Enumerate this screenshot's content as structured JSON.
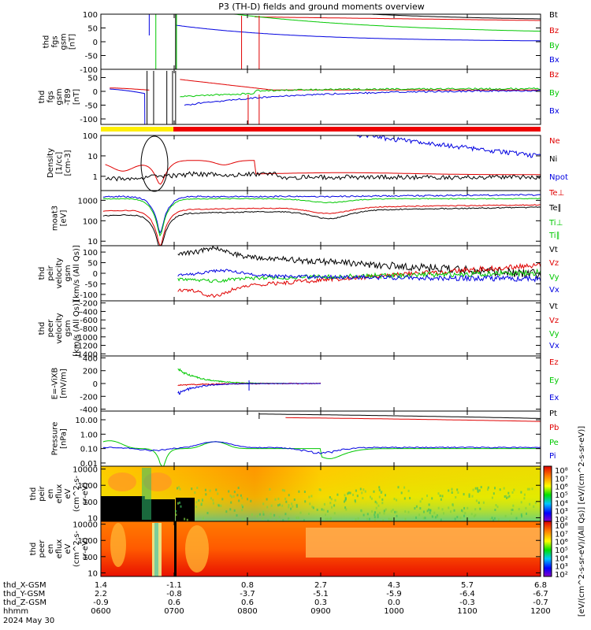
{
  "title": "P3 (TH-D) fields and ground moments overview",
  "date_label": "2024 May 30",
  "colors": {
    "black": "#000000",
    "red": "#e00000",
    "green": "#00c800",
    "blue": "#0000e0"
  },
  "chart_data": [
    {
      "type": "line",
      "ylabel": [
        "thd",
        "fgs",
        "gsm",
        "[nT]"
      ],
      "ylim": [
        -100,
        100
      ],
      "yticks": [
        "100",
        "50",
        "0",
        "-50",
        "-100"
      ],
      "series": [
        {
          "name": "Bt",
          "color": "black"
        },
        {
          "name": "Bz",
          "color": "red"
        },
        {
          "name": "By",
          "color": "green"
        },
        {
          "name": "Bx",
          "color": "blue"
        }
      ]
    },
    {
      "type": "line",
      "ylabel": [
        "thd",
        "fgs",
        "gsm",
        "-T89",
        "[nT]"
      ],
      "ylim": [
        -120,
        80
      ],
      "yticks": [
        "50",
        "0",
        "-50",
        "-100"
      ],
      "series": [
        {
          "name": "Bz",
          "color": "red"
        },
        {
          "name": "By",
          "color": "green"
        },
        {
          "name": "Bx",
          "color": "blue"
        }
      ]
    },
    {
      "type": "line",
      "ylabel": [
        "Density",
        "[1/cc]",
        "[cm-3]"
      ],
      "scale": "log",
      "ylim": [
        0.2,
        100
      ],
      "yticks": [
        "100",
        "10",
        "1"
      ],
      "series": [
        {
          "name": "Ne",
          "color": "red"
        },
        {
          "name": "Ni",
          "color": "black"
        },
        {
          "name": "Npot",
          "color": "blue"
        }
      ]
    },
    {
      "type": "line",
      "ylabel": [
        "moat3",
        "[eV]"
      ],
      "scale": "log",
      "ylim": [
        6,
        3000
      ],
      "yticks": [
        "1000",
        "100",
        "10"
      ],
      "series": [
        {
          "name": "Te⊥",
          "color": "red"
        },
        {
          "name": "Te∥",
          "color": "black"
        },
        {
          "name": "Ti⊥",
          "color": "green"
        },
        {
          "name": "Ti∥",
          "color": "green"
        }
      ]
    },
    {
      "type": "line",
      "ylabel": [
        "thd",
        "peir",
        "velocity",
        "gsm",
        "[km/s (All Qs)]"
      ],
      "ylim": [
        -130,
        130
      ],
      "yticks": [
        "100",
        "50",
        "0",
        "-50",
        "-100"
      ],
      "series": [
        {
          "name": "Vt",
          "color": "black"
        },
        {
          "name": "Vz",
          "color": "red"
        },
        {
          "name": "Vy",
          "color": "green"
        },
        {
          "name": "Vx",
          "color": "blue"
        }
      ]
    },
    {
      "type": "line",
      "ylabel": [
        "thd",
        "peer",
        "velocity",
        "gsm",
        "[km/s (All Qs)]"
      ],
      "ylim": [
        -1450,
        -150
      ],
      "yticks": [
        "-200",
        "-400",
        "-600",
        "-800",
        "-1000",
        "-1200",
        "-1400"
      ],
      "series": [
        {
          "name": "Vt",
          "color": "black"
        },
        {
          "name": "Vz",
          "color": "red"
        },
        {
          "name": "Vy",
          "color": "green"
        },
        {
          "name": "Vx",
          "color": "blue"
        }
      ]
    },
    {
      "type": "line",
      "ylabel": [
        "E=-ViXB",
        "[mV/m]"
      ],
      "ylim": [
        -430,
        430
      ],
      "yticks": [
        "400",
        "200",
        "0",
        "-200",
        "-400"
      ],
      "series": [
        {
          "name": "Ez",
          "color": "red"
        },
        {
          "name": "Ey",
          "color": "green"
        },
        {
          "name": "Ex",
          "color": "blue"
        }
      ]
    },
    {
      "type": "line",
      "ylabel": [
        "Pressure",
        "[nPa]"
      ],
      "scale": "log",
      "ylim": [
        0.006,
        40
      ],
      "yticks": [
        "10.00",
        "1.00",
        "0.10",
        "0.01"
      ],
      "series": [
        {
          "name": "Pt",
          "color": "black"
        },
        {
          "name": "Pb",
          "color": "red"
        },
        {
          "name": "Pe",
          "color": "green"
        },
        {
          "name": "Pi",
          "color": "blue"
        }
      ]
    },
    {
      "type": "heatmap",
      "ylabel": [
        "thd",
        "peir",
        "en",
        "eflux",
        "eV",
        "(cm^2-s-",
        "sr-eV)"
      ],
      "scale": "log",
      "ylim": [
        6,
        15000
      ],
      "yticks": [
        "10000",
        "1000",
        "100",
        "10"
      ]
    },
    {
      "type": "heatmap",
      "ylabel": [
        "thd",
        "peer",
        "en",
        "eflux",
        "eV",
        "(cm^2-s-",
        "sr-eV)"
      ],
      "scale": "log",
      "ylim": [
        6,
        15000
      ],
      "yticks": [
        "10000",
        "1000",
        "100",
        "10"
      ]
    }
  ],
  "colorbar": {
    "ticks": [
      "10⁸",
      "10⁷",
      "10⁶",
      "10⁵",
      "10⁴",
      "10³",
      "10²"
    ],
    "label": "[eV/(cm^2-s-sr-eV)/(All Qs)] [eV/(cm^2-s-sr-eV)]"
  },
  "xaxis": {
    "rows": [
      {
        "label": "thd_X-GSM",
        "values": [
          "1.4",
          "-1.1",
          "0.8",
          "2.7",
          "4.3",
          "5.7",
          "6.8"
        ]
      },
      {
        "label": "thd_Y-GSM",
        "values": [
          "2.2",
          "-0.8",
          "-3.7",
          "-5.1",
          "-5.9",
          "-6.4",
          "-6.7"
        ]
      },
      {
        "label": "thd_Z-GSM",
        "values": [
          "-0.9",
          "0.6",
          "0.6",
          "0.3",
          "0.0",
          "-0.3",
          "-0.7"
        ]
      },
      {
        "label": "hhmm",
        "values": [
          "0600",
          "0700",
          "0800",
          "0900",
          "1000",
          "1100",
          "1200"
        ]
      }
    ]
  }
}
